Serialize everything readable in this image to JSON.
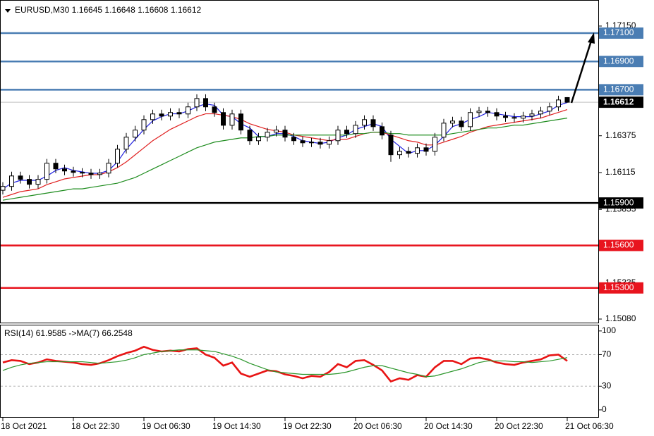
{
  "chart_data": [
    {
      "type": "candlestick",
      "title": "EURUSD,M30  1.16645 1.16648 1.16608 1.16612",
      "categories": [
        "18 Oct 2021",
        null,
        null,
        null,
        null,
        null,
        null,
        null,
        "18 Oct 22:30",
        null,
        null,
        null,
        null,
        null,
        null,
        null,
        "19 Oct 06:30",
        null,
        null,
        null,
        null,
        null,
        null,
        null,
        "19 Oct 14:30",
        null,
        null,
        null,
        null,
        null,
        null,
        null,
        "19 Oct 22:30",
        null,
        null,
        null,
        null,
        null,
        null,
        null,
        "20 Oct 06:30",
        null,
        null,
        null,
        null,
        null,
        null,
        null,
        "20 Oct 14:30",
        null,
        null,
        null,
        null,
        null,
        null,
        null,
        "20 Oct 22:30",
        null,
        null,
        null,
        null,
        null,
        null,
        null,
        "21 Oct 06:30"
      ],
      "open": [
        1.1599,
        1.16017,
        1.16091,
        1.16067,
        1.16032,
        1.16067,
        1.16181,
        1.16141,
        1.16126,
        1.16116,
        1.16111,
        1.16101,
        1.16111,
        1.16181,
        1.1628,
        1.16365,
        1.16415,
        1.16489,
        1.16529,
        1.16514,
        1.16539,
        1.16529,
        1.16579,
        1.16638,
        1.16579,
        1.16539,
        1.16449,
        1.16529,
        1.16415,
        1.1634,
        1.16365,
        1.164,
        1.16415,
        1.16365,
        1.1634,
        1.16325,
        1.1633,
        1.16315,
        1.1634,
        1.16415,
        1.1639,
        1.16449,
        1.16489,
        1.16439,
        1.1638,
        1.16241,
        1.16265,
        1.16251,
        1.1629,
        1.16265,
        1.16365,
        1.16464,
        1.16479,
        1.16439,
        1.16539,
        1.16549,
        1.16539,
        1.16514,
        1.16504,
        1.16499,
        1.16514,
        1.16529,
        1.16549,
        1.16579,
        1.16645
      ],
      "high": [
        1.16047,
        1.16121,
        1.16121,
        1.16097,
        1.16097,
        1.16211,
        1.16211,
        1.16171,
        1.16156,
        1.16146,
        1.16141,
        1.16141,
        1.16211,
        1.1631,
        1.16395,
        1.16445,
        1.16519,
        1.16559,
        1.16559,
        1.16569,
        1.16569,
        1.16609,
        1.16668,
        1.16668,
        1.16609,
        1.16569,
        1.16559,
        1.16559,
        1.16445,
        1.16395,
        1.1643,
        1.16445,
        1.16445,
        1.16395,
        1.1637,
        1.1636,
        1.1636,
        1.1637,
        1.16445,
        1.16445,
        1.16479,
        1.16519,
        1.16519,
        1.16469,
        1.1641,
        1.16295,
        1.16295,
        1.1632,
        1.1632,
        1.16395,
        1.16494,
        1.16509,
        1.16509,
        1.16569,
        1.16579,
        1.16579,
        1.16569,
        1.16544,
        1.16534,
        1.16544,
        1.16559,
        1.16579,
        1.16609,
        1.16658,
        1.16648
      ],
      "low": [
        1.1596,
        1.15987,
        1.16037,
        1.16002,
        1.16002,
        1.16037,
        1.16111,
        1.16096,
        1.16086,
        1.16081,
        1.16071,
        1.16071,
        1.16081,
        1.16151,
        1.1625,
        1.16335,
        1.16385,
        1.16459,
        1.16484,
        1.16484,
        1.16499,
        1.16499,
        1.16549,
        1.16549,
        1.16509,
        1.16419,
        1.16419,
        1.16385,
        1.1631,
        1.1631,
        1.16335,
        1.1637,
        1.16335,
        1.1631,
        1.16295,
        1.16295,
        1.16285,
        1.16285,
        1.1631,
        1.1636,
        1.1636,
        1.16419,
        1.16409,
        1.1635,
        1.16191,
        1.16211,
        1.16221,
        1.16221,
        1.16235,
        1.16235,
        1.16335,
        1.16434,
        1.16409,
        1.16409,
        1.16509,
        1.16509,
        1.16484,
        1.16474,
        1.16469,
        1.16469,
        1.16484,
        1.16499,
        1.16519,
        1.16549,
        1.16608
      ],
      "close": [
        1.16017,
        1.16091,
        1.16067,
        1.16032,
        1.16067,
        1.16181,
        1.16141,
        1.16126,
        1.16116,
        1.16111,
        1.16101,
        1.16111,
        1.16181,
        1.1628,
        1.16365,
        1.16415,
        1.16489,
        1.16529,
        1.16514,
        1.16539,
        1.16529,
        1.16579,
        1.16638,
        1.16579,
        1.16539,
        1.16449,
        1.16529,
        1.16415,
        1.1634,
        1.16365,
        1.164,
        1.16415,
        1.16365,
        1.1634,
        1.16325,
        1.1633,
        1.16315,
        1.1634,
        1.16415,
        1.1639,
        1.16449,
        1.16489,
        1.16439,
        1.1638,
        1.16241,
        1.16265,
        1.16251,
        1.1629,
        1.16265,
        1.16365,
        1.16464,
        1.16479,
        1.16439,
        1.16539,
        1.16549,
        1.16539,
        1.16514,
        1.16504,
        1.16499,
        1.16514,
        1.16529,
        1.16549,
        1.16579,
        1.16628,
        1.16612
      ],
      "series": [
        {
          "color": "#1f1fe0",
          "values": [
            1.16,
            1.1604,
            1.1606,
            1.1606,
            1.1606,
            1.1609,
            1.1613,
            1.1615,
            1.1613,
            1.1612,
            1.1611,
            1.1611,
            1.1613,
            1.1619,
            1.1628,
            1.1635,
            1.1642,
            1.1648,
            1.1651,
            1.1653,
            1.1653,
            1.1655,
            1.1658,
            1.166,
            1.1659,
            1.1652,
            1.1651,
            1.1646,
            1.1643,
            1.1637,
            1.1637,
            1.1639,
            1.1639,
            1.1637,
            1.1634,
            1.1633,
            1.1632,
            1.1633,
            1.1636,
            1.1638,
            1.1642,
            1.1644,
            1.1646,
            1.1644,
            1.1635,
            1.163,
            1.1625,
            1.1627,
            1.1627,
            1.1631,
            1.1637,
            1.1644,
            1.1646,
            1.1649,
            1.1651,
            1.1654,
            1.1653,
            1.1652,
            1.1651,
            1.1651,
            1.1651,
            1.1653,
            1.1655,
            1.1659,
            1.1661
          ]
        },
        {
          "color": "#e02020",
          "values": [
            1.1594,
            1.1596,
            1.1598,
            1.1599,
            1.16,
            1.1603,
            1.1605,
            1.1607,
            1.1608,
            1.1609,
            1.161,
            1.161,
            1.1612,
            1.1615,
            1.1619,
            1.1624,
            1.1629,
            1.1634,
            1.1638,
            1.1642,
            1.1645,
            1.1648,
            1.1651,
            1.1653,
            1.1653,
            1.1652,
            1.1651,
            1.1649,
            1.1646,
            1.1644,
            1.1642,
            1.1641,
            1.164,
            1.1638,
            1.1637,
            1.1636,
            1.1635,
            1.1634,
            1.1635,
            1.1635,
            1.1637,
            1.1639,
            1.164,
            1.164,
            1.1638,
            1.1636,
            1.1634,
            1.1633,
            1.1631,
            1.1631,
            1.1633,
            1.1635,
            1.1637,
            1.164,
            1.1642,
            1.1644,
            1.1645,
            1.1646,
            1.1647,
            1.1648,
            1.1649,
            1.165,
            1.1652,
            1.1654,
            1.1656
          ]
        },
        {
          "color": "#1e8c1e",
          "values": [
            1.1592,
            1.1593,
            1.1594,
            1.1595,
            1.1596,
            1.1597,
            1.1598,
            1.1599,
            1.16,
            1.16,
            1.1601,
            1.1602,
            1.1603,
            1.1604,
            1.1606,
            1.1608,
            1.1611,
            1.1614,
            1.1617,
            1.162,
            1.1623,
            1.1626,
            1.1629,
            1.1631,
            1.1633,
            1.1634,
            1.1635,
            1.1636,
            1.1636,
            1.1637,
            1.1637,
            1.1638,
            1.1638,
            1.1638,
            1.1638,
            1.1638,
            1.1638,
            1.1638,
            1.1638,
            1.1638,
            1.1639,
            1.1639,
            1.164,
            1.164,
            1.1639,
            1.1639,
            1.1638,
            1.1638,
            1.1638,
            1.1638,
            1.1638,
            1.1639,
            1.164,
            1.1641,
            1.1642,
            1.1643,
            1.1643,
            1.1644,
            1.1645,
            1.1645,
            1.1646,
            1.1647,
            1.1648,
            1.1649,
            1.165
          ]
        }
      ],
      "ylim": [
        1.15055,
        1.17334
      ],
      "yticks": [
        {
          "value": 1.1715,
          "label": "1.17150"
        },
        {
          "value": 1.16375,
          "label": "1.16375"
        },
        {
          "value": 1.16115,
          "label": "1.16115"
        },
        {
          "value": 1.15855,
          "label": "1.15855"
        },
        {
          "value": 1.15335,
          "label": "1.15335"
        },
        {
          "value": 1.1508,
          "label": "1.15080"
        }
      ],
      "levels": [
        {
          "value": 1.171,
          "label": "1.17100",
          "color": "#4a7db3"
        },
        {
          "value": 1.169,
          "label": "1.16900",
          "color": "#4a7db3"
        },
        {
          "value": 1.167,
          "label": "1.16700",
          "color": "#4a7db3"
        },
        {
          "value": 1.159,
          "label": "1.15900",
          "color": "#000000"
        },
        {
          "value": 1.156,
          "label": "1.15600",
          "color": "#e8141e"
        },
        {
          "value": 1.153,
          "label": "1.15300",
          "color": "#e8141e"
        }
      ],
      "last": {
        "value": 1.16612,
        "label": "1.16612"
      }
    },
    {
      "type": "line",
      "title": "RSI(14) 61.9585 ->MA(7) 66.2548",
      "series": [
        {
          "color": "#e81414",
          "values": [
            60,
            63,
            62,
            58,
            60,
            64,
            62,
            61,
            60,
            58,
            57,
            59,
            63,
            68,
            72,
            75,
            80,
            76,
            74,
            75,
            74,
            77,
            78,
            70,
            66,
            56,
            60,
            46,
            42,
            46,
            50,
            49,
            45,
            43,
            40,
            43,
            42,
            48,
            58,
            54,
            62,
            63,
            57,
            50,
            36,
            40,
            38,
            44,
            42,
            54,
            62,
            62,
            58,
            65,
            66,
            64,
            60,
            58,
            57,
            60,
            62,
            64,
            69,
            70,
            61.9585
          ]
        },
        {
          "color": "#2a962a",
          "values": [
            50,
            54,
            57,
            59,
            60,
            61,
            61,
            61,
            61,
            61,
            60,
            59,
            60,
            61,
            63,
            66,
            70,
            72,
            74,
            75,
            76,
            76,
            76,
            75,
            74,
            71,
            68,
            64,
            59,
            55,
            51,
            48,
            47,
            46,
            45,
            45,
            45,
            45,
            46,
            48,
            51,
            54,
            56,
            56,
            53,
            50,
            47,
            45,
            42,
            43,
            46,
            49,
            52,
            56,
            60,
            62,
            62,
            62,
            61,
            61,
            60,
            61,
            62,
            64,
            66.2548
          ]
        }
      ],
      "ylim": [
        -9,
        107
      ],
      "yticks": [
        100,
        70,
        30,
        0
      ],
      "levels": [
        70,
        30
      ]
    }
  ]
}
